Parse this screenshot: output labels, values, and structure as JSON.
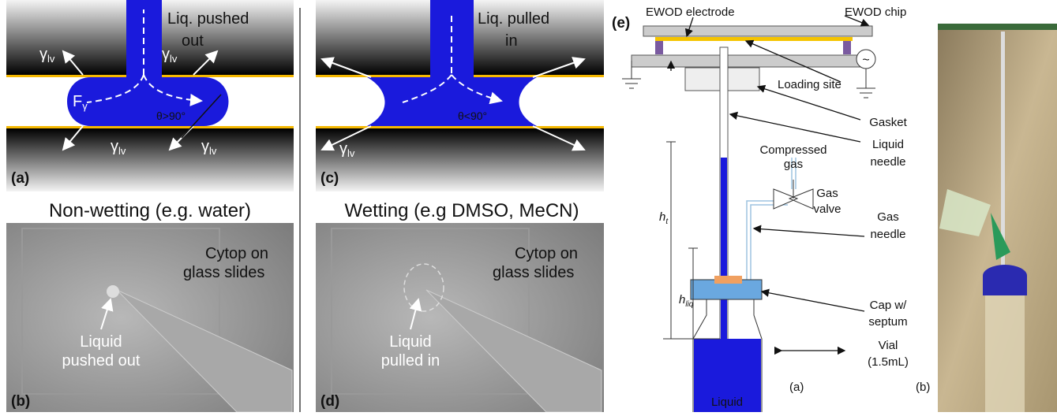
{
  "panel_a": {
    "label": "(a)",
    "top_text": [
      "Liq. pushed",
      "out"
    ],
    "gamma": "γ",
    "gamma_sub": "lv",
    "force": "F",
    "force_sub": "γ",
    "angle": "θ>90°"
  },
  "title_left": "Non-wetting (e.g. water)",
  "panel_b": {
    "label": "(b)",
    "surface": [
      "Cytop on",
      "glass slides"
    ],
    "drop": [
      "Liquid",
      "pushed out"
    ]
  },
  "panel_c": {
    "label": "(c)",
    "top_text": [
      "Liq. pulled",
      "in"
    ],
    "gamma": "γ",
    "gamma_sub": "lv",
    "angle": "θ<90°"
  },
  "title_right": "Wetting (e.g DMSO, MeCN)",
  "panel_d": {
    "label": "(d)",
    "surface": [
      "Cytop on",
      "glass slides"
    ],
    "drop": [
      "Liquid",
      "pulled in"
    ]
  },
  "panel_e": {
    "label": "(e)",
    "electrode": "EWOD electrode",
    "chip": "EWOD chip",
    "loading": "Loading site",
    "ac": "~",
    "gasket": "Gasket",
    "liquid_needle": [
      "Liquid",
      "needle"
    ],
    "compressed": [
      "Compressed",
      "gas"
    ],
    "valve": [
      "Gas",
      "valve"
    ],
    "gas_needle": [
      "Gas",
      "needle"
    ],
    "h": "h",
    "h_t_sub": "t",
    "h_liq_sub": "liq",
    "cap": [
      "Cap w/",
      "septum"
    ],
    "vial": [
      "Vial",
      "(1.5mL)"
    ],
    "liquid": "Liquid",
    "sub_a": "(a)",
    "sub_b": "(b)"
  }
}
